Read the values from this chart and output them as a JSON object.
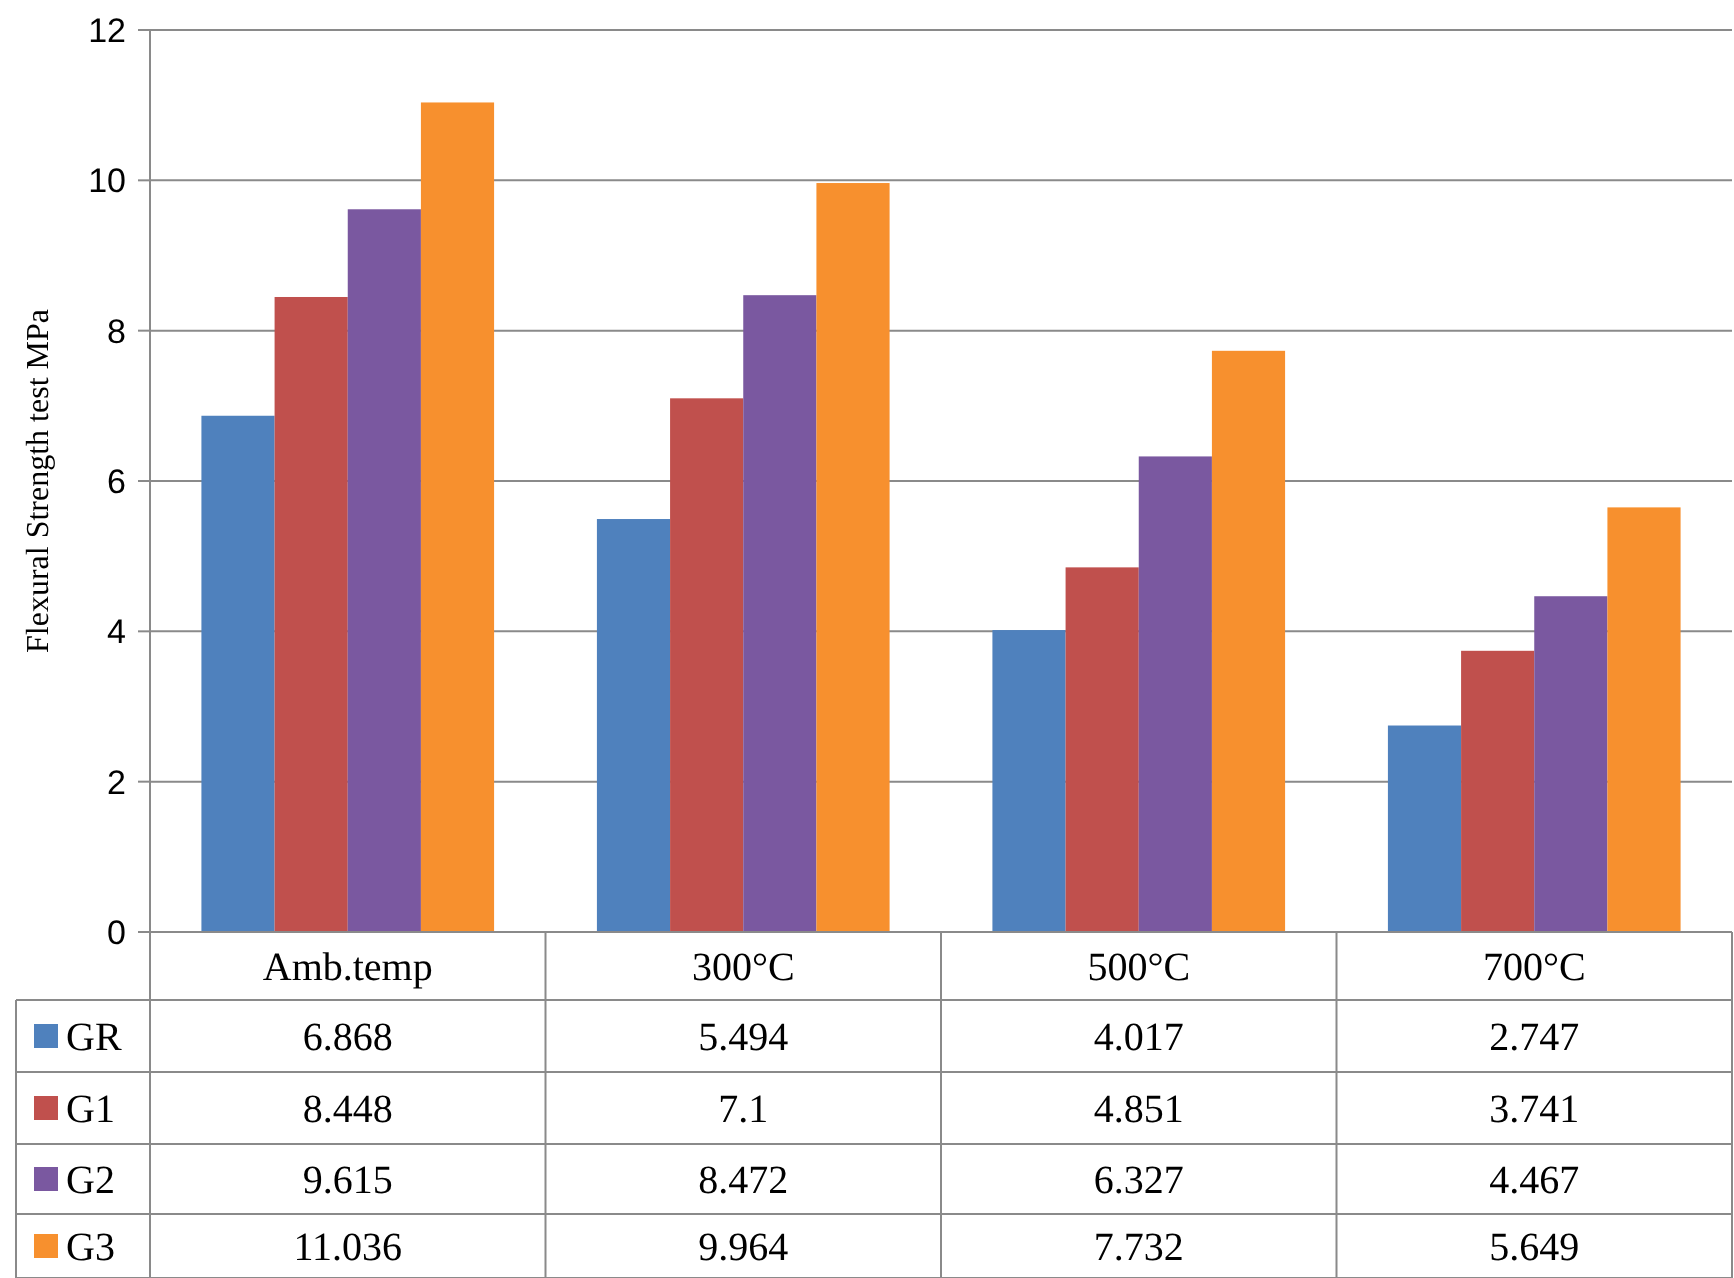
{
  "chart_data": {
    "type": "bar",
    "ylabel": "Flexural Strength  test MPa",
    "categories": [
      "Amb.temp",
      "300°C",
      "500°C",
      "700°C"
    ],
    "series": [
      {
        "name": "GR",
        "color": "#4f81bd",
        "values": [
          6.868,
          5.494,
          4.017,
          2.747
        ]
      },
      {
        "name": "G1",
        "color": "#c0504d",
        "values": [
          8.448,
          7.1,
          4.851,
          3.741
        ]
      },
      {
        "name": "G2",
        "color": "#7a58a0",
        "values": [
          9.615,
          8.472,
          6.327,
          4.467
        ]
      },
      {
        "name": "G3",
        "color": "#f7902e",
        "values": [
          11.036,
          9.964,
          7.732,
          5.649
        ]
      }
    ],
    "ylim": [
      0,
      12
    ],
    "yticks": [
      0,
      2,
      4,
      6,
      8,
      10,
      12
    ],
    "grid": "y",
    "legend": "bottom left",
    "data_labels": true
  }
}
